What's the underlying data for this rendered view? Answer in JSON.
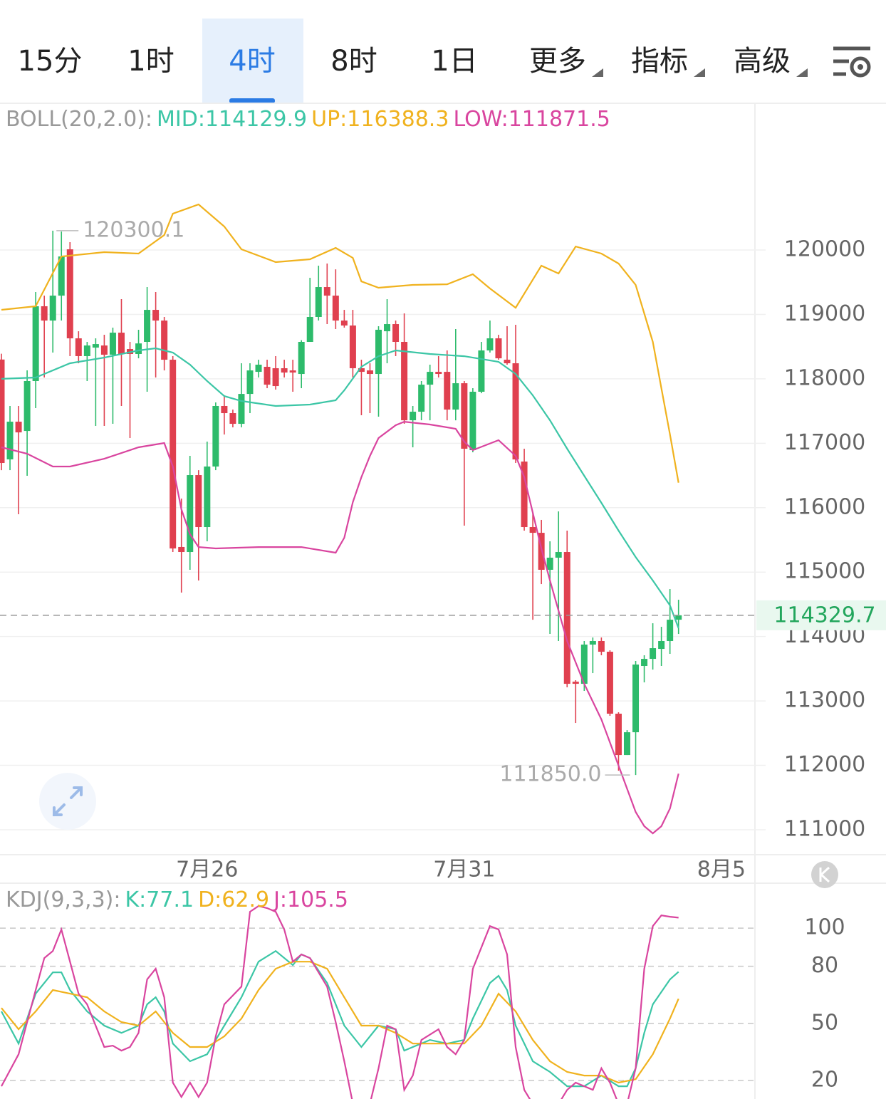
{
  "tabs": [
    {
      "label": "15分"
    },
    {
      "label": "1时"
    },
    {
      "label": "4时"
    },
    {
      "label": "8时"
    },
    {
      "label": "1日"
    },
    {
      "label": "更多",
      "menu": true
    },
    {
      "label": "指标",
      "menu": true
    },
    {
      "label": "高级",
      "menu": true
    }
  ],
  "active_tab": 2,
  "chart_data": [
    {
      "type": "candlestick",
      "title": "BOLL(20,2.0):",
      "xlim": [
        0,
        88
      ],
      "xticks": [
        {
          "value": 24,
          "label": "7月26"
        },
        {
          "value": 54,
          "label": "7月31"
        },
        {
          "value": 84,
          "label": "8月5"
        }
      ],
      "ylim": [
        110613,
        122278
      ],
      "yticks": [
        111000,
        112000,
        113000,
        114000,
        115000,
        116000,
        117000,
        118000,
        119000,
        120000
      ],
      "grid": true,
      "up_color": "#2dbb6b",
      "down_color": "#e0404f",
      "last_price": 114329.7,
      "open": [
        118300,
        116750,
        117335,
        117191,
        117966,
        119127,
        118905,
        119292,
        120011,
        118629,
        118353,
        118485,
        118518,
        118375,
        118717,
        118463,
        118386,
        118574,
        119071,
        118905,
        118297,
        115390,
        115312,
        116506,
        115699,
        116639,
        117579,
        117468,
        117302,
        117766,
        118109,
        118187,
        118165,
        118165,
        118131,
        118076,
        118574,
        118961,
        119425,
        119292,
        118905,
        118828,
        118165,
        118131,
        118076,
        118739,
        118850,
        118574,
        117357,
        117490,
        117910,
        118109,
        118109,
        117523,
        117932,
        116893,
        117800,
        118441,
        118629,
        118297,
        118242,
        116716,
        115699,
        115610,
        115036,
        115224,
        115312,
        113299,
        113266,
        113875,
        113930,
        113764,
        112802,
        112160,
        112514,
        113543,
        113653,
        113808,
        113930,
        114261
      ],
      "high": [
        118390,
        117579,
        117579,
        118131,
        119348,
        119292,
        120300.1,
        120287,
        120122,
        118739,
        118574,
        118629,
        118684,
        118795,
        119237,
        118574,
        118762,
        119425,
        119348,
        118961,
        118353,
        116141,
        116805,
        116583,
        117026,
        117634,
        117744,
        117523,
        118242,
        118242,
        118297,
        118297,
        118353,
        118297,
        118297,
        118600,
        119569,
        119757,
        119790,
        119700,
        119071,
        119071,
        118297,
        118242,
        118817,
        119237,
        118905,
        119016,
        117579,
        117966,
        118220,
        118353,
        118441,
        118773,
        117966,
        117855,
        118574,
        118905,
        118684,
        118817,
        118839,
        116915,
        115920,
        115810,
        115478,
        115942,
        115644,
        113322,
        113930,
        113985,
        113985,
        113786,
        112824,
        112547,
        113620,
        113709,
        114206,
        114151,
        114737,
        114571
      ],
      "low": [
        116583,
        116583,
        115898,
        116495,
        117545,
        118021,
        118408,
        118905,
        118353,
        118242,
        117966,
        117269,
        117269,
        117302,
        117579,
        117081,
        118319,
        117800,
        118021,
        118131,
        115312,
        114682,
        115036,
        114870,
        115478,
        116583,
        117136,
        117247,
        117247,
        117468,
        118021,
        117855,
        117833,
        118021,
        117800,
        117855,
        118574,
        118905,
        118850,
        118773,
        118795,
        118021,
        117435,
        117468,
        117413,
        118242,
        118353,
        117302,
        116937,
        117357,
        117357,
        118021,
        117357,
        117357,
        115721,
        116860,
        117777,
        118408,
        118297,
        118220,
        116694,
        115644,
        114261,
        114814,
        114040,
        113930,
        113211,
        112658,
        113156,
        113432,
        113709,
        112769,
        111917,
        112160,
        111850,
        113288,
        113487,
        113543,
        113731,
        114040
      ],
      "close": [
        116694,
        117335,
        117169,
        117966,
        119127,
        118905,
        119292,
        119900,
        118629,
        118353,
        118518,
        118540,
        118375,
        118717,
        118386,
        118386,
        118550,
        119071,
        118905,
        118297,
        115367,
        115312,
        116506,
        115699,
        116639,
        117579,
        117468,
        117302,
        117766,
        118131,
        118220,
        117910,
        117888,
        118098,
        118098,
        118574,
        118961,
        119425,
        119292,
        118905,
        118828,
        118165,
        118109,
        118076,
        118762,
        118850,
        118574,
        117357,
        117490,
        117910,
        118109,
        118076,
        117523,
        117932,
        116915,
        117800,
        118441,
        118629,
        118319,
        118242,
        116749,
        115699,
        115610,
        115036,
        115224,
        115312,
        113266,
        113266,
        113875,
        113930,
        113764,
        112802,
        112160,
        112514,
        113565,
        113653,
        113819,
        113930,
        114261,
        114329.7
      ],
      "annotations": [
        {
          "index": 6,
          "value": 120300.1,
          "label": "120300.1"
        },
        {
          "index": 74,
          "value": 111850,
          "label": "111850.0"
        }
      ],
      "series": [
        {
          "name": "MID",
          "label": "MID:114129.9",
          "color": "#3cc6a6",
          "x": [
            0,
            4,
            8,
            12,
            16,
            18,
            20,
            22,
            24,
            26,
            28,
            32,
            36,
            39,
            40,
            42,
            44,
            46,
            50,
            54,
            58,
            60,
            62,
            64,
            66,
            68,
            70,
            72,
            74,
            76,
            78,
            79
          ],
          "values": [
            118000,
            118021,
            118242,
            118330,
            118441,
            118474,
            118408,
            118220,
            117966,
            117733,
            117656,
            117579,
            117601,
            117667,
            117822,
            118187,
            118352,
            118441,
            118386,
            118352,
            118264,
            118076,
            117744,
            117357,
            116915,
            116495,
            116075,
            115644,
            115234,
            114870,
            114483,
            114129.9
          ]
        },
        {
          "name": "UP",
          "label": "UP:116388.3",
          "color": "#f0b21e",
          "x": [
            0,
            4,
            7,
            12,
            16,
            19,
            20,
            23,
            26,
            28,
            32,
            36,
            39,
            41,
            42,
            44,
            48,
            52,
            55,
            57,
            60,
            63,
            65,
            67,
            70,
            72,
            74,
            76,
            77,
            78,
            79
          ],
          "values": [
            119071,
            119127,
            119900,
            119967,
            119945,
            120232,
            120564,
            120708,
            120365,
            120011,
            119812,
            119856,
            120033,
            119878,
            119513,
            119414,
            119458,
            119469,
            119624,
            119403,
            119104,
            119757,
            119635,
            120055,
            119945,
            119790,
            119458,
            118574,
            117855,
            117136,
            116388.3
          ]
        },
        {
          "name": "LOW",
          "label": "LOW:111871.5",
          "color": "#d9459f",
          "x": [
            0,
            3,
            6,
            8,
            12,
            16,
            19,
            20,
            21,
            22,
            23,
            25,
            30,
            35,
            39,
            40,
            41,
            42,
            43,
            44,
            46,
            47,
            50,
            53,
            54,
            55,
            58,
            60,
            61,
            62,
            63,
            64,
            66,
            68,
            70,
            72,
            74,
            75,
            76,
            77,
            78,
            79
          ],
          "values": [
            116937,
            116838,
            116639,
            116639,
            116760,
            116937,
            117004,
            116639,
            115975,
            115588,
            115389,
            115367,
            115389,
            115389,
            115301,
            115533,
            116086,
            116473,
            116805,
            117081,
            117280,
            117335,
            117291,
            117225,
            117026,
            116893,
            117048,
            116805,
            116473,
            115920,
            115367,
            114870,
            113930,
            113266,
            112713,
            111995,
            111276,
            111055,
            110944,
            111055,
            111331,
            111871.5
          ]
        }
      ]
    },
    {
      "type": "line",
      "title": "KDJ(9,3,3):",
      "xlim": [
        0,
        88
      ],
      "ylim": [
        10.3,
        123.6
      ],
      "yticks": [
        20,
        50,
        80,
        100
      ],
      "grid": true,
      "series": [
        {
          "name": "K",
          "label": "K:77.1",
          "color": "#3cc6a6",
          "x": [
            0,
            2,
            4,
            6,
            7,
            8,
            10,
            12,
            14,
            16,
            17,
            18,
            19,
            20,
            22,
            24,
            26,
            28,
            30,
            32,
            34,
            35,
            36,
            38,
            40,
            42,
            44,
            46,
            47,
            48,
            50,
            52,
            54,
            55,
            57,
            58,
            59,
            60,
            62,
            64,
            66,
            68,
            70,
            72,
            73,
            74,
            75,
            76,
            78,
            79
          ],
          "values": [
            56.3,
            39.4,
            65.6,
            76.8,
            76.8,
            67.5,
            56.3,
            48.8,
            45.0,
            48.8,
            60.0,
            63.7,
            56.3,
            39.4,
            30.1,
            33.8,
            48.8,
            63.7,
            82.4,
            88.0,
            80.6,
            86.2,
            84.3,
            71.2,
            48.8,
            37.6,
            48.8,
            46.9,
            35.7,
            37.6,
            41.3,
            39.4,
            41.3,
            52.5,
            71.2,
            75.0,
            67.5,
            48.8,
            30.1,
            24.5,
            17.0,
            17.0,
            22.6,
            17.0,
            17.0,
            26.4,
            45.0,
            60.0,
            73.1,
            77.1
          ]
        },
        {
          "name": "D",
          "label": "D:62.9",
          "color": "#f0b21e",
          "x": [
            0,
            2,
            4,
            6,
            8,
            10,
            12,
            14,
            16,
            18,
            20,
            22,
            24,
            26,
            28,
            30,
            32,
            34,
            36,
            38,
            40,
            42,
            44,
            46,
            48,
            50,
            52,
            54,
            56,
            58,
            60,
            62,
            64,
            66,
            68,
            70,
            72,
            74,
            76,
            78,
            79
          ],
          "values": [
            58.1,
            46.9,
            56.3,
            67.5,
            65.6,
            63.7,
            56.3,
            50.7,
            48.8,
            56.3,
            45.0,
            37.6,
            37.6,
            43.2,
            52.5,
            67.5,
            78.7,
            82.4,
            82.4,
            78.7,
            63.7,
            48.8,
            48.8,
            45.0,
            39.4,
            39.4,
            39.4,
            39.4,
            48.8,
            65.6,
            56.3,
            41.3,
            30.1,
            24.5,
            22.6,
            22.6,
            18.9,
            20.7,
            33.8,
            52.5,
            62.9
          ]
        },
        {
          "name": "J",
          "label": "J:105.5",
          "color": "#d9459f",
          "x": [
            0,
            2,
            4,
            5,
            6,
            7,
            8,
            9,
            10,
            12,
            13,
            14,
            15,
            16,
            17,
            18,
            19,
            20,
            21,
            22,
            23,
            24,
            25,
            26,
            28,
            29,
            30,
            31,
            32,
            33,
            34,
            35,
            36,
            38,
            39,
            40,
            41,
            42,
            43,
            44,
            45,
            46,
            47,
            48,
            49,
            51,
            52,
            53,
            54,
            55,
            57,
            58,
            59,
            60,
            61,
            62,
            63,
            65,
            66,
            67,
            69,
            70,
            71,
            72,
            73,
            74,
            75,
            76,
            77,
            78,
            79
          ],
          "values": [
            17.0,
            33.8,
            67.5,
            84.3,
            88.0,
            99.3,
            82.4,
            65.6,
            60.0,
            37.6,
            38.3,
            35.7,
            37.6,
            45.0,
            73.1,
            78.7,
            63.7,
            18.9,
            11.4,
            18.9,
            11.4,
            18.9,
            43.2,
            60.0,
            69.3,
            108.6,
            111.6,
            110.5,
            108.6,
            99.3,
            82.4,
            86.2,
            84.3,
            69.3,
            50.7,
            30.1,
            8.0,
            5.0,
            8.0,
            26.4,
            48.8,
            46.9,
            15.1,
            22.6,
            41.3,
            46.9,
            37.6,
            33.8,
            41.3,
            78.7,
            101.1,
            99.3,
            86.2,
            37.6,
            15.1,
            7.7,
            9.5,
            7.7,
            15.1,
            18.9,
            15.1,
            26.4,
            18.9,
            7.7,
            7.7,
            26.4,
            78.7,
            101.1,
            106.7,
            106.0,
            105.5
          ]
        }
      ]
    }
  ]
}
